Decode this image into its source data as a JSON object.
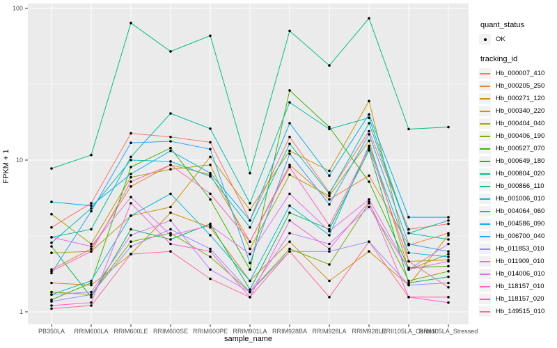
{
  "chart_data": {
    "type": "line",
    "title": "",
    "xlabel": "sample_name",
    "ylabel": "FPKM + 1",
    "yscale": "log10",
    "ylim": [
      1,
      100
    ],
    "yticks": [
      {
        "value": 1,
        "label": "1"
      },
      {
        "value": 10,
        "label": "10"
      },
      {
        "value": 100,
        "label": "100"
      }
    ],
    "y_minor": [
      3.162,
      31.62
    ],
    "grid": true,
    "legend_position": "right",
    "categories": [
      "PB350LA",
      "RRIM600LA",
      "RRIM600LE",
      "RRIM600SE",
      "RRIM600PE",
      "RRIM901LA",
      "RRIM928BA",
      "RRIM928LA",
      "RRIM928LE",
      "RRII105LA_Control",
      "RRII105LA_Stressed"
    ],
    "series": [
      {
        "name": "Hb_000007_410",
        "color": "#F8766D",
        "values": [
          3.6,
          5.2,
          15.0,
          14.2,
          13.1,
          4.0,
          14.2,
          6.1,
          15.5,
          3.5,
          3.8
        ]
      },
      {
        "name": "Hb_000205_250",
        "color": "#EA8331",
        "values": [
          1.9,
          2.6,
          6.7,
          9.3,
          8.0,
          2.9,
          9.3,
          5.5,
          7.9,
          2.75,
          3.3
        ]
      },
      {
        "name": "Hb_000271_120",
        "color": "#D89000",
        "values": [
          1.55,
          1.5,
          2.4,
          4.5,
          3.6,
          1.6,
          2.9,
          1.6,
          2.5,
          1.5,
          3.2
        ]
      },
      {
        "name": "Hb_000340_220",
        "color": "#C09B00",
        "values": [
          2.45,
          2.5,
          4.3,
          4.9,
          10.5,
          4.7,
          11.5,
          8.5,
          24.5,
          2.15,
          2.2
        ]
      },
      {
        "name": "Hb_000404_040",
        "color": "#A3A500",
        "values": [
          4.4,
          2.8,
          7.7,
          8.7,
          9.3,
          2.6,
          8.0,
          5.8,
          13.4,
          1.9,
          2.4
        ]
      },
      {
        "name": "Hb_000406_190",
        "color": "#7CAE00",
        "values": [
          1.35,
          1.3,
          2.9,
          3.3,
          2.3,
          1.35,
          2.6,
          2.05,
          5.2,
          1.6,
          1.85
        ]
      },
      {
        "name": "Hb_000527_070",
        "color": "#39B600",
        "values": [
          1.2,
          1.55,
          9.0,
          12.0,
          5.5,
          1.9,
          28.8,
          16.5,
          7.2,
          1.95,
          2.0
        ]
      },
      {
        "name": "Hb_000649_180",
        "color": "#00BB4E",
        "values": [
          2.7,
          1.25,
          3.5,
          3.0,
          3.8,
          1.4,
          4.5,
          3.5,
          11.6,
          1.55,
          1.7
        ]
      },
      {
        "name": "Hb_000804_020",
        "color": "#00C07F",
        "values": [
          8.8,
          10.8,
          80.0,
          52.0,
          66.0,
          8.2,
          71.0,
          42.0,
          86.0,
          16.0,
          16.5
        ]
      },
      {
        "name": "Hb_000866_110",
        "color": "#00C1A2",
        "values": [
          3.1,
          3.5,
          10.5,
          20.3,
          16.1,
          5.2,
          24.0,
          16.0,
          19.0,
          3.3,
          4.0
        ]
      },
      {
        "name": "Hb_001006_010",
        "color": "#00BFC4",
        "values": [
          2.85,
          4.8,
          10.0,
          9.8,
          7.8,
          3.6,
          12.8,
          6.0,
          17.5,
          3.3,
          3.0
        ]
      },
      {
        "name": "Hb_004064_060",
        "color": "#00BADE",
        "values": [
          1.3,
          1.6,
          4.3,
          6.0,
          3.2,
          1.6,
          5.0,
          3.2,
          12.4,
          2.45,
          2.3
        ]
      },
      {
        "name": "Hb_004586_090",
        "color": "#00B0F6",
        "values": [
          5.3,
          5.0,
          8.1,
          11.5,
          8.2,
          4.0,
          17.5,
          7.9,
          20.0,
          4.2,
          4.2
        ]
      },
      {
        "name": "Hb_006700_040",
        "color": "#29A3FF",
        "values": [
          1.8,
          4.6,
          13.0,
          13.3,
          11.8,
          2.1,
          11.0,
          5.1,
          14.8,
          2.8,
          2.5
        ]
      },
      {
        "name": "Hb_011853_010",
        "color": "#9590FF",
        "values": [
          1.17,
          1.3,
          2.7,
          3.5,
          2.6,
          1.35,
          2.5,
          2.5,
          2.9,
          1.5,
          1.55
        ]
      },
      {
        "name": "Hb_011909_010",
        "color": "#C77CFF",
        "values": [
          1.3,
          1.35,
          3.2,
          4.0,
          1.9,
          1.35,
          3.3,
          2.8,
          4.9,
          1.9,
          2.8
        ]
      },
      {
        "name": "Hb_014006_010",
        "color": "#E76BF3",
        "values": [
          3.1,
          2.7,
          5.7,
          3.2,
          3.7,
          2.4,
          6.0,
          3.4,
          5.5,
          1.9,
          2.15
        ]
      },
      {
        "name": "Hb_118157_010",
        "color": "#FA62DB",
        "values": [
          1.1,
          1.15,
          5.2,
          2.8,
          2.5,
          1.25,
          4.0,
          2.6,
          5.3,
          1.25,
          1.15
        ]
      },
      {
        "name": "Hb_118157_020",
        "color": "#FF62BC",
        "values": [
          1.85,
          2.5,
          7.2,
          9.3,
          6.0,
          2.9,
          9.0,
          3.7,
          12.0,
          2.15,
          1.45
        ]
      },
      {
        "name": "Hb_149515_010",
        "color": "#FF6A98",
        "values": [
          1.05,
          1.1,
          2.4,
          2.5,
          1.65,
          1.25,
          2.5,
          1.25,
          2.9,
          1.25,
          1.25
        ]
      }
    ],
    "legend": {
      "quant_status": {
        "title": "quant_status",
        "items": [
          {
            "label": "OK",
            "shape": "point",
            "color": "#000000"
          }
        ]
      },
      "tracking_id": {
        "title": "tracking_id"
      }
    },
    "style": {
      "panel_bg": "#EBEBEB",
      "grid_color": "#FFFFFF",
      "point_color": "#000000",
      "tick_label_color": "#4D4D4D",
      "tick_mark_color": "#333333",
      "legend_key_bg": "#F2F2F2"
    }
  }
}
